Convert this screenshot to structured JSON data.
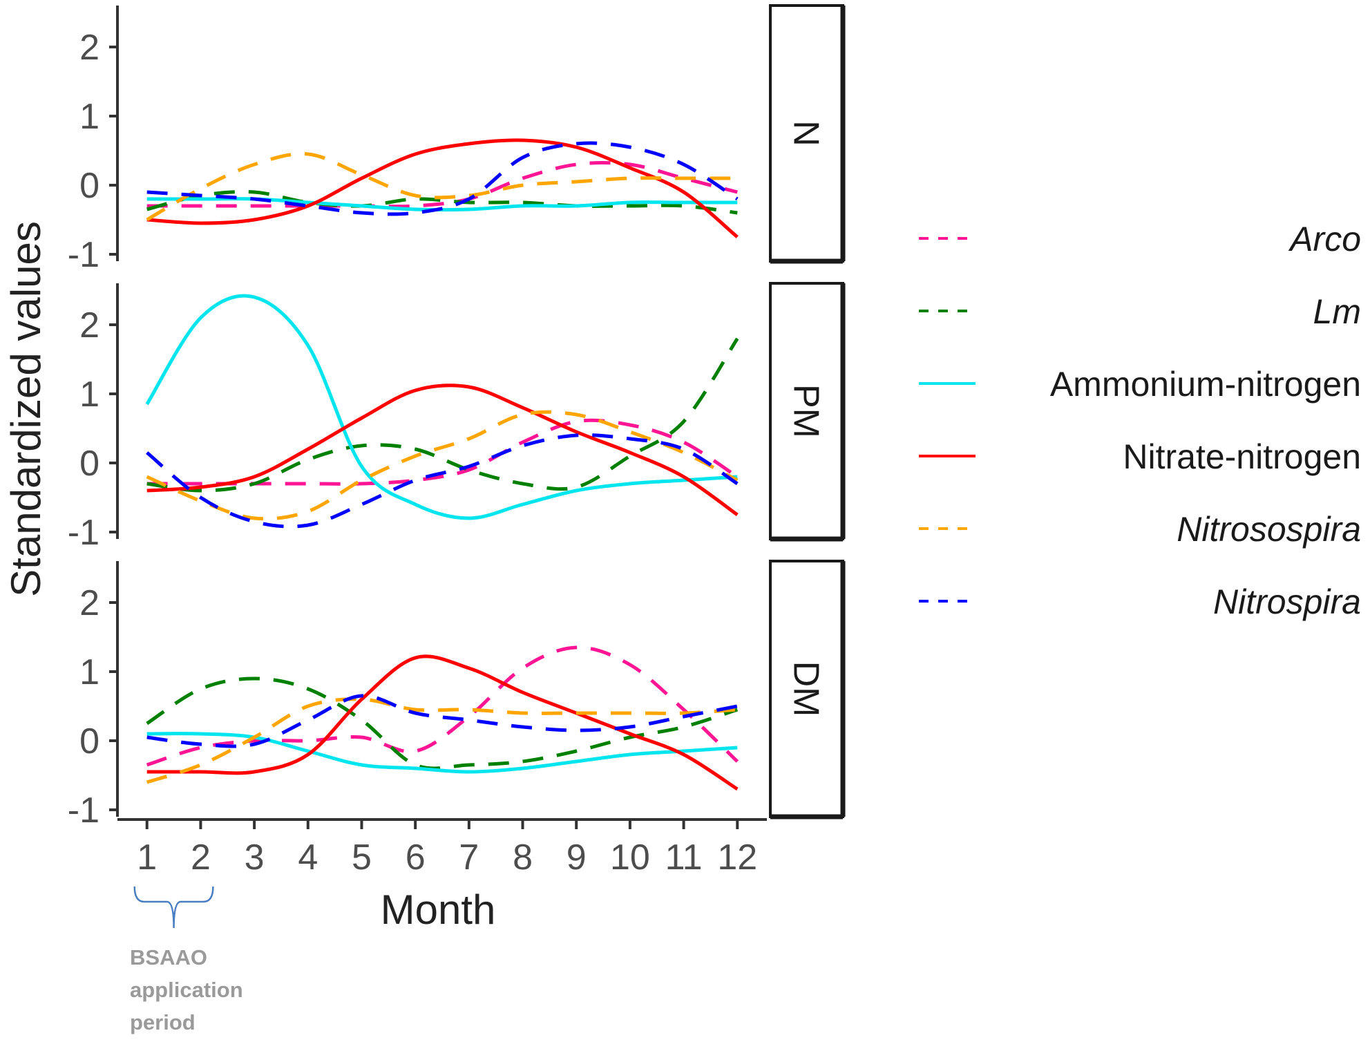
{
  "chart_data": {
    "type": "line",
    "title": "",
    "xlabel": "Month",
    "ylabel": "Standardized values",
    "x": [
      1,
      2,
      3,
      4,
      5,
      6,
      7,
      8,
      9,
      10,
      11,
      12
    ],
    "x_tick_labels": [
      "1",
      "2",
      "3",
      "4",
      "5",
      "6",
      "7",
      "8",
      "9",
      "10",
      "11",
      "12"
    ],
    "xlim": [
      0.45,
      12.55
    ],
    "ylim": [
      -1.1,
      2.6
    ],
    "y_ticks": [
      -1,
      0,
      1,
      2
    ],
    "y_tick_labels": [
      "-1",
      "0",
      "1",
      "2"
    ],
    "grid": false,
    "legend_position": "right",
    "series_styles": [
      {
        "name": "Arco",
        "color": "#ff1493",
        "dash": "dashed",
        "italic": true
      },
      {
        "name": "Lm",
        "color": "#008000",
        "dash": "dashed",
        "italic": true
      },
      {
        "name": "Ammonium-nitrogen",
        "color": "#00e5ee",
        "dash": "solid",
        "italic": false
      },
      {
        "name": "Nitrate-nitrogen",
        "color": "#ff0000",
        "dash": "solid",
        "italic": false
      },
      {
        "name": "Nitrosospira",
        "color": "#ffa500",
        "dash": "dashed",
        "italic": true
      },
      {
        "name": "Nitrospira",
        "color": "#0000ff",
        "dash": "dashed",
        "italic": true
      }
    ],
    "panels": [
      {
        "label": "N",
        "series": [
          {
            "name": "Arco",
            "values": [
              -0.3,
              -0.3,
              -0.3,
              -0.3,
              -0.3,
              -0.3,
              -0.2,
              0.1,
              0.3,
              0.3,
              0.1,
              -0.1
            ]
          },
          {
            "name": "Lm",
            "values": [
              -0.35,
              -0.15,
              -0.1,
              -0.25,
              -0.3,
              -0.2,
              -0.25,
              -0.25,
              -0.3,
              -0.3,
              -0.3,
              -0.4
            ]
          },
          {
            "name": "Ammonium-nitrogen",
            "values": [
              -0.2,
              -0.2,
              -0.2,
              -0.25,
              -0.3,
              -0.35,
              -0.35,
              -0.3,
              -0.3,
              -0.25,
              -0.25,
              -0.25
            ]
          },
          {
            "name": "Nitrate-nitrogen",
            "values": [
              -0.5,
              -0.55,
              -0.5,
              -0.3,
              0.1,
              0.45,
              0.6,
              0.65,
              0.55,
              0.25,
              -0.1,
              -0.75
            ]
          },
          {
            "name": "Nitrosospira",
            "values": [
              -0.5,
              -0.05,
              0.3,
              0.45,
              0.15,
              -0.15,
              -0.15,
              0.0,
              0.05,
              0.1,
              0.1,
              0.1
            ]
          },
          {
            "name": "Nitrospira",
            "values": [
              -0.1,
              -0.15,
              -0.2,
              -0.3,
              -0.4,
              -0.4,
              -0.2,
              0.4,
              0.6,
              0.55,
              0.3,
              -0.2
            ]
          }
        ]
      },
      {
        "label": "PM",
        "series": [
          {
            "name": "Arco",
            "values": [
              -0.3,
              -0.3,
              -0.3,
              -0.3,
              -0.3,
              -0.25,
              -0.1,
              0.3,
              0.6,
              0.55,
              0.3,
              -0.2
            ]
          },
          {
            "name": "Lm",
            "values": [
              -0.3,
              -0.4,
              -0.3,
              0.05,
              0.25,
              0.2,
              -0.1,
              -0.3,
              -0.35,
              0.1,
              0.6,
              1.8
            ]
          },
          {
            "name": "Ammonium-nitrogen",
            "values": [
              0.85,
              2.1,
              2.4,
              1.7,
              -0.05,
              -0.6,
              -0.8,
              -0.6,
              -0.4,
              -0.3,
              -0.25,
              -0.2
            ]
          },
          {
            "name": "Nitrate-nitrogen",
            "values": [
              -0.4,
              -0.35,
              -0.2,
              0.2,
              0.65,
              1.05,
              1.1,
              0.8,
              0.45,
              0.15,
              -0.2,
              -0.75
            ]
          },
          {
            "name": "Nitrosospira",
            "values": [
              -0.2,
              -0.55,
              -0.8,
              -0.7,
              -0.25,
              0.1,
              0.35,
              0.7,
              0.7,
              0.45,
              0.15,
              -0.25
            ]
          },
          {
            "name": "Nitrospira",
            "values": [
              0.15,
              -0.5,
              -0.85,
              -0.9,
              -0.6,
              -0.25,
              -0.05,
              0.25,
              0.4,
              0.35,
              0.2,
              -0.3
            ]
          }
        ]
      },
      {
        "label": "DM",
        "series": [
          {
            "name": "Arco",
            "values": [
              -0.35,
              -0.1,
              0.0,
              0.0,
              0.05,
              -0.15,
              0.35,
              1.05,
              1.35,
              1.1,
              0.45,
              -0.3
            ]
          },
          {
            "name": "Lm",
            "values": [
              0.25,
              0.75,
              0.9,
              0.75,
              0.3,
              -0.35,
              -0.35,
              -0.3,
              -0.15,
              0.05,
              0.2,
              0.45
            ]
          },
          {
            "name": "Ammonium-nitrogen",
            "values": [
              0.1,
              0.1,
              0.05,
              -0.15,
              -0.35,
              -0.4,
              -0.45,
              -0.4,
              -0.3,
              -0.2,
              -0.15,
              -0.1
            ]
          },
          {
            "name": "Nitrate-nitrogen",
            "values": [
              -0.45,
              -0.45,
              -0.45,
              -0.2,
              0.6,
              1.2,
              1.05,
              0.7,
              0.4,
              0.1,
              -0.2,
              -0.7
            ]
          },
          {
            "name": "Nitrosospira",
            "values": [
              -0.6,
              -0.35,
              0.05,
              0.5,
              0.6,
              0.45,
              0.45,
              0.4,
              0.4,
              0.4,
              0.4,
              0.45
            ]
          },
          {
            "name": "Nitrospira",
            "values": [
              0.05,
              -0.05,
              -0.05,
              0.3,
              0.65,
              0.4,
              0.3,
              0.2,
              0.15,
              0.2,
              0.35,
              0.5
            ]
          }
        ]
      }
    ],
    "annotation": {
      "text_lines": [
        "BSAAO",
        "application",
        "period"
      ],
      "brace_from_month": 1,
      "brace_to_month": 2
    }
  }
}
